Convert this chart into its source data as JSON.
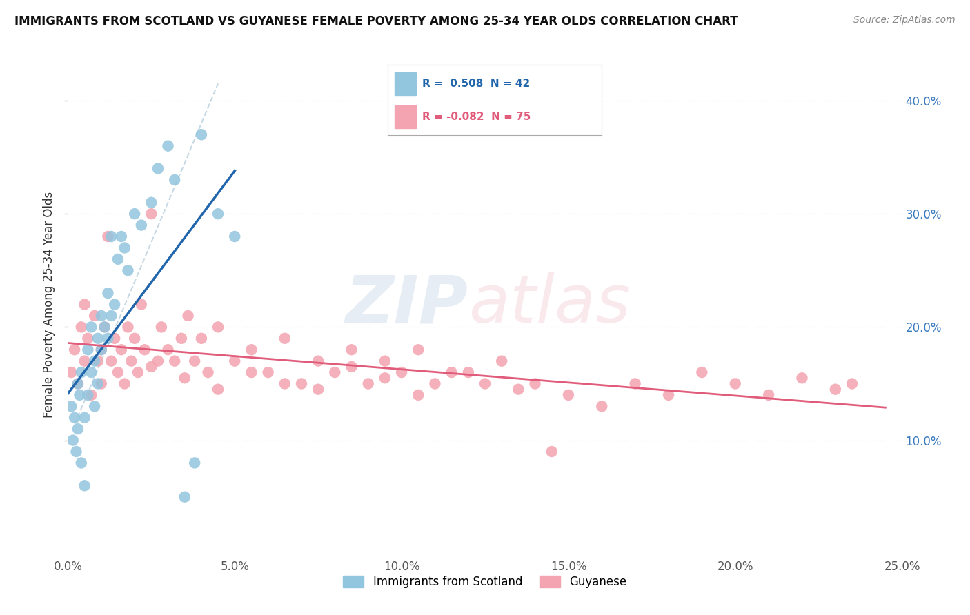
{
  "title": "IMMIGRANTS FROM SCOTLAND VS GUYANESE FEMALE POVERTY AMONG 25-34 YEAR OLDS CORRELATION CHART",
  "source": "Source: ZipAtlas.com",
  "ylabel": "Female Poverty Among 25-34 Year Olds",
  "x_tick_labels": [
    "0.0%",
    "5.0%",
    "10.0%",
    "15.0%",
    "20.0%",
    "25.0%"
  ],
  "x_tick_vals": [
    0.0,
    5.0,
    10.0,
    15.0,
    20.0,
    25.0
  ],
  "y_tick_labels": [
    "10.0%",
    "20.0%",
    "30.0%",
    "40.0%"
  ],
  "y_tick_vals": [
    10.0,
    20.0,
    30.0,
    40.0
  ],
  "xlim": [
    0.0,
    25.0
  ],
  "ylim": [
    0.0,
    44.0
  ],
  "blue_R": 0.508,
  "blue_N": 42,
  "pink_R": -0.082,
  "pink_N": 75,
  "blue_color": "#92c5de",
  "pink_color": "#f4a4b0",
  "blue_line_color": "#2166ac",
  "pink_line_color": "#e05c7a",
  "legend_blue_label": "Immigrants from Scotland",
  "legend_pink_label": "Guyanese",
  "blue_scatter_x": [
    0.1,
    0.15,
    0.2,
    0.25,
    0.3,
    0.3,
    0.35,
    0.4,
    0.4,
    0.5,
    0.5,
    0.6,
    0.6,
    0.7,
    0.7,
    0.8,
    0.8,
    0.9,
    0.9,
    1.0,
    1.0,
    1.1,
    1.2,
    1.2,
    1.3,
    1.3,
    1.4,
    1.5,
    1.6,
    1.7,
    1.8,
    2.0,
    2.2,
    2.5,
    2.7,
    3.0,
    3.2,
    3.5,
    3.8,
    4.0,
    4.5,
    5.0
  ],
  "blue_scatter_y": [
    13.0,
    10.0,
    12.0,
    9.0,
    15.0,
    11.0,
    14.0,
    8.0,
    16.0,
    12.0,
    6.0,
    14.0,
    18.0,
    16.0,
    20.0,
    17.0,
    13.0,
    19.0,
    15.0,
    18.0,
    21.0,
    20.0,
    19.0,
    23.0,
    21.0,
    28.0,
    22.0,
    26.0,
    28.0,
    27.0,
    25.0,
    30.0,
    29.0,
    31.0,
    34.0,
    36.0,
    33.0,
    5.0,
    8.0,
    37.0,
    30.0,
    28.0
  ],
  "pink_scatter_x": [
    0.1,
    0.2,
    0.3,
    0.4,
    0.5,
    0.5,
    0.6,
    0.7,
    0.8,
    0.9,
    1.0,
    1.0,
    1.1,
    1.2,
    1.3,
    1.4,
    1.5,
    1.6,
    1.7,
    1.8,
    1.9,
    2.0,
    2.1,
    2.2,
    2.3,
    2.5,
    2.7,
    2.8,
    3.0,
    3.2,
    3.4,
    3.6,
    3.8,
    4.0,
    4.2,
    4.5,
    5.0,
    5.5,
    6.0,
    6.5,
    7.0,
    7.5,
    8.0,
    8.5,
    9.0,
    9.5,
    10.0,
    10.5,
    11.0,
    12.0,
    13.0,
    14.0,
    15.0,
    16.0,
    17.0,
    18.0,
    19.0,
    20.0,
    21.0,
    22.0,
    23.0,
    23.5,
    2.5,
    3.5,
    4.5,
    5.5,
    6.5,
    7.5,
    8.5,
    9.5,
    10.5,
    11.5,
    12.5,
    13.5,
    14.5
  ],
  "pink_scatter_y": [
    16.0,
    18.0,
    15.0,
    20.0,
    17.0,
    22.0,
    19.0,
    14.0,
    21.0,
    17.0,
    18.0,
    15.0,
    20.0,
    28.0,
    17.0,
    19.0,
    16.0,
    18.0,
    15.0,
    20.0,
    17.0,
    19.0,
    16.0,
    22.0,
    18.0,
    30.0,
    17.0,
    20.0,
    18.0,
    17.0,
    19.0,
    21.0,
    17.0,
    19.0,
    16.0,
    20.0,
    17.0,
    18.0,
    16.0,
    19.0,
    15.0,
    17.0,
    16.0,
    18.0,
    15.0,
    17.0,
    16.0,
    18.0,
    15.0,
    16.0,
    17.0,
    15.0,
    14.0,
    13.0,
    15.0,
    14.0,
    16.0,
    15.0,
    14.0,
    15.5,
    14.5,
    15.0,
    16.5,
    15.5,
    14.5,
    16.0,
    15.0,
    14.5,
    16.5,
    15.5,
    14.0,
    16.0,
    15.0,
    14.5,
    9.0
  ]
}
